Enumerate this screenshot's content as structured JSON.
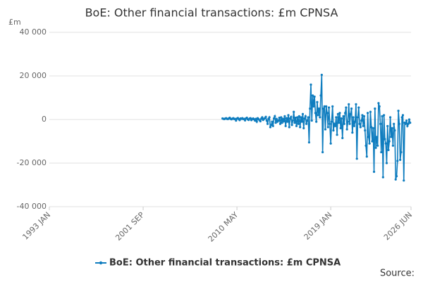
{
  "chart_data": {
    "type": "line",
    "title": "BoE: Other financial transactions: £m CPNSA",
    "y_label": "£m",
    "source_label": "Source:",
    "xlim": [
      "1993 JAN",
      "2026 JUN"
    ],
    "xticks": [
      "1993 JAN",
      "2001 SEP",
      "2010 MAY",
      "2019 JAN",
      "2026 JUN"
    ],
    "ylim": [
      -40000,
      40000
    ],
    "yticks": [
      {
        "value": -40000,
        "label": "-40 000"
      },
      {
        "value": -20000,
        "label": "-20 000"
      },
      0,
      {
        "value": 20000,
        "label": "20 000"
      },
      {
        "value": 40000,
        "label": "40 000"
      }
    ],
    "grid": true,
    "x": [
      "2009 JAN",
      "2009 FEB",
      "2009 MAR",
      "2009 APR",
      "2009 MAY",
      "2009 JUN",
      "2009 JUL",
      "2009 AUG",
      "2009 SEP",
      "2009 OCT",
      "2009 NOV",
      "2009 DEC",
      "2010 JAN",
      "2010 FEB",
      "2010 MAR",
      "2010 APR",
      "2010 MAY",
      "2010 JUN",
      "2010 JUL",
      "2010 AUG",
      "2010 SEP",
      "2010 OCT",
      "2010 NOV",
      "2010 DEC",
      "2011 JAN",
      "2011 FEB",
      "2011 MAR",
      "2011 APR",
      "2011 MAY",
      "2011 JUN",
      "2011 JUL",
      "2011 AUG",
      "2011 SEP",
      "2011 OCT",
      "2011 NOV",
      "2011 DEC",
      "2012 JAN",
      "2012 FEB",
      "2012 MAR",
      "2012 APR",
      "2012 MAY",
      "2012 JUN",
      "2012 JUL",
      "2012 AUG",
      "2012 SEP",
      "2012 OCT",
      "2012 NOV",
      "2012 DEC",
      "2013 JAN",
      "2013 FEB",
      "2013 MAR",
      "2013 APR",
      "2013 MAY",
      "2013 JUN",
      "2013 JUL",
      "2013 AUG",
      "2013 SEP",
      "2013 OCT",
      "2013 NOV",
      "2013 DEC",
      "2014 JAN",
      "2014 FEB",
      "2014 MAR",
      "2014 APR",
      "2014 MAY",
      "2014 JUN",
      "2014 JUL",
      "2014 AUG",
      "2014 SEP",
      "2014 OCT",
      "2014 NOV",
      "2014 DEC",
      "2015 JAN",
      "2015 FEB",
      "2015 MAR",
      "2015 APR",
      "2015 MAY",
      "2015 JUN",
      "2015 JUL",
      "2015 AUG",
      "2015 SEP",
      "2015 OCT",
      "2015 NOV",
      "2015 DEC",
      "2016 JAN",
      "2016 FEB",
      "2016 MAR",
      "2016 APR",
      "2016 MAY",
      "2016 JUN",
      "2016 JUL",
      "2016 AUG",
      "2016 SEP",
      "2016 OCT",
      "2016 NOV",
      "2016 DEC",
      "2017 JAN",
      "2017 FEB",
      "2017 MAR",
      "2017 APR",
      "2017 MAY",
      "2017 JUN",
      "2017 JUL",
      "2017 AUG",
      "2017 SEP",
      "2017 OCT",
      "2017 NOV",
      "2017 DEC",
      "2018 JAN",
      "2018 FEB",
      "2018 MAR",
      "2018 APR",
      "2018 MAY",
      "2018 JUN",
      "2018 JUL",
      "2018 AUG",
      "2018 SEP",
      "2018 OCT",
      "2018 NOV",
      "2018 DEC",
      "2019 JAN",
      "2019 FEB",
      "2019 MAR",
      "2019 APR",
      "2019 MAY",
      "2019 JUN",
      "2019 JUL",
      "2019 AUG",
      "2019 SEP",
      "2019 OCT",
      "2019 NOV",
      "2019 DEC",
      "2020 JAN",
      "2020 FEB",
      "2020 MAR",
      "2020 APR",
      "2020 MAY",
      "2020 JUN",
      "2020 JUL",
      "2020 AUG",
      "2020 SEP",
      "2020 OCT",
      "2020 NOV",
      "2020 DEC",
      "2021 JAN",
      "2021 FEB",
      "2021 MAR",
      "2021 APR",
      "2021 MAY",
      "2021 JUN",
      "2021 JUL",
      "2021 AUG",
      "2021 SEP",
      "2021 OCT",
      "2021 NOV",
      "2021 DEC",
      "2022 JAN",
      "2022 FEB",
      "2022 MAR",
      "2022 APR",
      "2022 MAY",
      "2022 JUN",
      "2022 JUL",
      "2022 AUG",
      "2022 SEP",
      "2022 OCT",
      "2022 NOV",
      "2022 DEC",
      "2023 JAN",
      "2023 FEB",
      "2023 MAR",
      "2023 APR",
      "2023 MAY",
      "2023 JUN",
      "2023 JUL",
      "2023 AUG",
      "2023 SEP",
      "2023 OCT",
      "2023 NOV",
      "2023 DEC",
      "2024 JAN",
      "2024 FEB",
      "2024 MAR",
      "2024 APR",
      "2024 MAY",
      "2024 JUN",
      "2024 JUL",
      "2024 AUG",
      "2024 SEP",
      "2024 OCT",
      "2024 NOV",
      "2024 DEC",
      "2025 JAN",
      "2025 FEB",
      "2025 MAR",
      "2025 APR",
      "2025 MAY",
      "2025 JUN",
      "2025 JUL",
      "2025 AUG",
      "2025 SEP",
      "2025 OCT",
      "2025 NOV",
      "2025 DEC",
      "2026 JAN",
      "2026 FEB",
      "2026 MAR",
      "2026 APR",
      "2026 MAY"
    ],
    "series": [
      {
        "name": "BoE: Other financial transactions: £m CPNSA",
        "color": "#0f7dbf",
        "values": [
          500,
          300,
          200,
          400,
          600,
          300,
          200,
          500,
          800,
          300,
          100,
          400,
          600,
          200,
          300,
          -500,
          400,
          700,
          200,
          -300,
          500,
          300,
          600,
          200,
          300,
          -400,
          500,
          800,
          100,
          -200,
          400,
          600,
          -300,
          200,
          500,
          100,
          -500,
          300,
          -1000,
          600,
          200,
          -300,
          -800,
          400,
          1000,
          -200,
          300,
          600,
          1200,
          -500,
          -2000,
          300,
          1000,
          -3500,
          -2500,
          -1000,
          -3000,
          500,
          1500,
          -1500,
          200,
          -1000,
          -500,
          800,
          -2000,
          1000,
          -1500,
          300,
          -800,
          1500,
          -3000,
          600,
          -1000,
          2000,
          -3500,
          500,
          1200,
          -2500,
          -500,
          3500,
          -1500,
          800,
          -3000,
          1000,
          -2000,
          1500,
          -3500,
          1000,
          -1000,
          2500,
          -4000,
          500,
          1500,
          -2000,
          -500,
          1000,
          -10500,
          5000,
          16000,
          -500,
          11000,
          6000,
          10500,
          3000,
          -1000,
          8000,
          2000,
          5000,
          1000,
          11000,
          20500,
          -15000,
          5000,
          6000,
          -4500,
          6000,
          3000,
          -3500,
          5500,
          -2000,
          -11000,
          -1000,
          6000,
          -5000,
          -2000,
          -3000,
          1000,
          -7000,
          2500,
          -1500,
          3000,
          -4000,
          500,
          -8500,
          1500,
          -2000,
          3000,
          5500,
          -4500,
          -1000,
          7000,
          -2000,
          2500,
          5000,
          -6000,
          1000,
          -3000,
          -1000,
          7000,
          -18000,
          1000,
          5500,
          -2000,
          -3500,
          -500,
          2000,
          -3000,
          1500,
          -5000,
          -12000,
          -17000,
          3000,
          -8000,
          -11000,
          3500,
          -3500,
          -10000,
          -4000,
          -24000,
          5000,
          -13000,
          -8000,
          -12000,
          7500,
          6000,
          -2000,
          -15000,
          1500,
          -26500,
          2000,
          -9000,
          -11000,
          -20000,
          -3000,
          -14000,
          -10000,
          1000,
          -8000,
          -4000,
          -12000,
          -2000,
          -5000,
          -27500,
          -26000,
          -19000,
          4000,
          -2000,
          -18500,
          -15000,
          1000,
          2000,
          -28000,
          -1500,
          -2000,
          -500,
          -3000,
          -2000,
          0,
          -1500
        ]
      }
    ]
  }
}
